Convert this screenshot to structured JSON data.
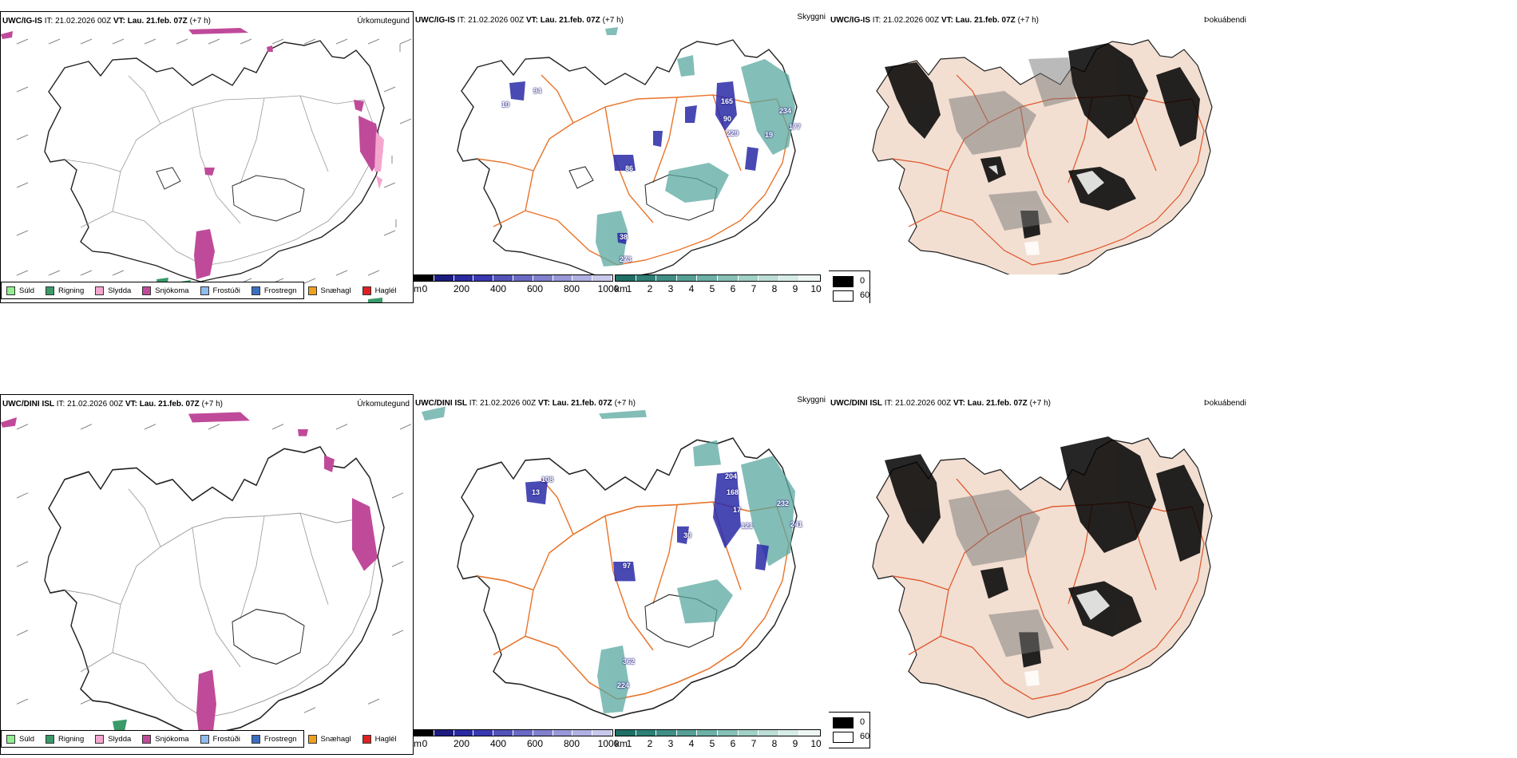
{
  "rows": [
    {
      "model": "UWC/IG-IS",
      "it_label": "IT:",
      "it_value": "21.02.2026 00Z",
      "vt_label": "VT:",
      "vt_value": "Lau. 21.feb. 07Z",
      "lead": "(+7 h)",
      "titles": {
        "precip": "Úrkomutegund",
        "visibility": "Skyggni",
        "cloud": "Þokuábendi"
      },
      "vis_labels": [
        "94",
        "10",
        "165",
        "90",
        "229",
        "19",
        "234",
        "177",
        "86",
        "38",
        "273"
      ]
    },
    {
      "model": "UWC/DINI ISL",
      "it_label": "IT:",
      "it_value": "21.02.2026 00Z",
      "vt_label": "VT:",
      "vt_value": "Lau. 21.feb. 07Z",
      "lead": "(+7 h)",
      "titles": {
        "precip": "Úrkomutegund",
        "visibility": "Skyggni",
        "cloud": "Þokuábendi"
      },
      "vis_labels": [
        "108",
        "13",
        "204",
        "168",
        "17",
        "121",
        "30",
        "232",
        "241",
        "97",
        "362",
        "224"
      ]
    }
  ],
  "precip_legend": [
    {
      "label": "Súld",
      "color": "#90ee90"
    },
    {
      "label": "Rigning",
      "color": "#3a9a6a"
    },
    {
      "label": "Slydda",
      "color": "#f4a6cf"
    },
    {
      "label": "Snjókoma",
      "color": "#c04a9a"
    },
    {
      "label": "Frostúði",
      "color": "#8fbbee"
    },
    {
      "label": "Frostregn",
      "color": "#3a6fc0"
    },
    {
      "label": "Snæhagl",
      "color": "#f0a020"
    },
    {
      "label": "Haglél",
      "color": "#e02020"
    }
  ],
  "ceiling_bar": {
    "unit": "m",
    "ticks": [
      "0",
      "200",
      "400",
      "600",
      "800",
      "1000"
    ],
    "colors": [
      "#000000",
      "#1c1c80",
      "#2a2aa0",
      "#3838b0",
      "#5252b8",
      "#6a6ac4",
      "#8080cc",
      "#9898d8",
      "#b0b0e2",
      "#c8c8ec"
    ]
  },
  "vis_bar": {
    "unit": "km",
    "ticks": [
      "1",
      "2",
      "3",
      "4",
      "5",
      "6",
      "7",
      "8",
      "9",
      "10"
    ],
    "colors": [
      "#1f6f66",
      "#2e7f76",
      "#3f8f86",
      "#55a096",
      "#6cb0a6",
      "#86c0b6",
      "#a0d0c6",
      "#bcded6",
      "#d6ece6",
      "#eef7f4"
    ]
  },
  "cloud_legend": [
    {
      "label": "0",
      "color": "#000000"
    },
    {
      "label": "60",
      "color": "#ffffff"
    }
  ],
  "colors": {
    "road": "#e8742a",
    "coast": "#222222",
    "land_fog": "#f2dfd2",
    "snow": "#c04a9a",
    "teal": "#5aa8a0",
    "blue": "#2a2aa8"
  }
}
